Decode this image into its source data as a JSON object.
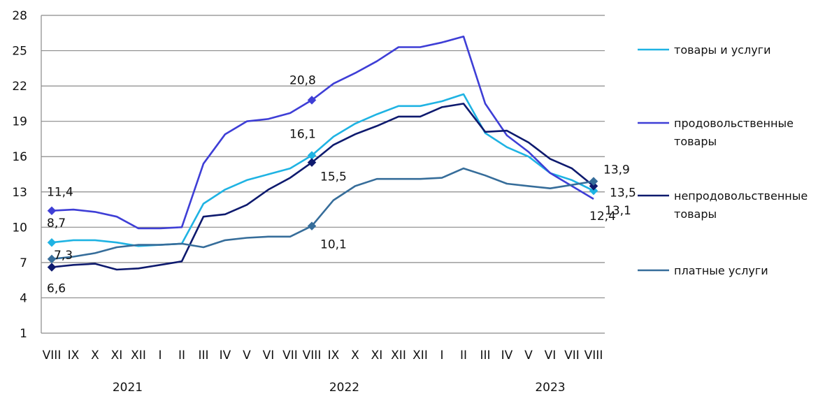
{
  "chart_data": {
    "type": "line",
    "title": "",
    "xlabel": "",
    "ylabel": "",
    "ylim": [
      1,
      28
    ],
    "yticks": [
      1,
      4,
      7,
      10,
      13,
      16,
      19,
      22,
      25,
      28
    ],
    "grid": true,
    "legend_position": "right",
    "categories": [
      "VIII",
      "IX",
      "X",
      "XI",
      "XII",
      "I",
      "II",
      "III",
      "IV",
      "V",
      "VI",
      "VII",
      "VIII",
      "IX",
      "X",
      "XI",
      "XII",
      "XII",
      "I",
      "II",
      "III",
      "IV",
      "V",
      "VI",
      "VII",
      "VIII"
    ],
    "years": [
      {
        "label": "2021",
        "center_index": 3.5
      },
      {
        "label": "2022",
        "center_index": 13.5
      },
      {
        "label": "2023",
        "center_index": 23
      }
    ],
    "series": [
      {
        "name": "товары и услуги",
        "color": "#1fb3e3",
        "values": [
          8.7,
          8.9,
          8.9,
          8.7,
          8.4,
          8.5,
          8.6,
          12.0,
          13.2,
          14.0,
          14.5,
          15.0,
          16.1,
          17.7,
          18.8,
          19.6,
          20.3,
          20.3,
          20.7,
          21.3,
          18.0,
          16.8,
          16.0,
          14.6,
          14.0,
          13.1
        ],
        "labels": [
          {
            "i": 0,
            "text": "8,7"
          },
          {
            "i": 12,
            "text": "16,1"
          },
          {
            "i": 25,
            "text": "13,1"
          }
        ],
        "markers": [
          0,
          12,
          25
        ]
      },
      {
        "name": "продовольственные товары",
        "color": "#3e3ed6",
        "values": [
          11.4,
          11.5,
          11.3,
          10.9,
          9.9,
          9.9,
          10.0,
          15.4,
          17.9,
          19.0,
          19.2,
          19.7,
          20.8,
          22.2,
          23.1,
          24.1,
          25.3,
          25.3,
          25.7,
          26.2,
          20.5,
          17.8,
          16.4,
          14.6,
          13.5,
          12.4
        ],
        "labels": [
          {
            "i": 0,
            "text": "11,4"
          },
          {
            "i": 12,
            "text": "20,8"
          },
          {
            "i": 25,
            "text": "12,4"
          }
        ],
        "markers": [
          0,
          12
        ]
      },
      {
        "name": "непродовольственные товары",
        "color": "#0e1a6e",
        "values": [
          6.6,
          6.8,
          6.9,
          6.4,
          6.5,
          6.8,
          7.1,
          10.9,
          11.1,
          11.9,
          13.2,
          14.2,
          15.5,
          17.0,
          17.9,
          18.6,
          19.4,
          19.4,
          20.2,
          20.5,
          18.1,
          18.2,
          17.2,
          15.8,
          15.0,
          13.5
        ],
        "labels": [
          {
            "i": 0,
            "text": "6,6"
          },
          {
            "i": 12,
            "text": "15,5"
          },
          {
            "i": 25,
            "text": "13,5"
          }
        ],
        "markers": [
          0,
          12,
          25
        ]
      },
      {
        "name": "платные услуги",
        "color": "#366d9a",
        "values": [
          7.3,
          7.5,
          7.8,
          8.3,
          8.5,
          8.5,
          8.6,
          8.3,
          8.9,
          9.1,
          9.2,
          9.2,
          10.1,
          12.3,
          13.5,
          14.1,
          14.1,
          14.1,
          14.2,
          15.0,
          14.4,
          13.7,
          13.5,
          13.3,
          13.6,
          13.9
        ],
        "labels": [
          {
            "i": 0,
            "text": "7,3"
          },
          {
            "i": 12,
            "text": "10,1"
          },
          {
            "i": 25,
            "text": "13,9"
          }
        ],
        "markers": [
          0,
          12,
          25
        ]
      }
    ]
  }
}
